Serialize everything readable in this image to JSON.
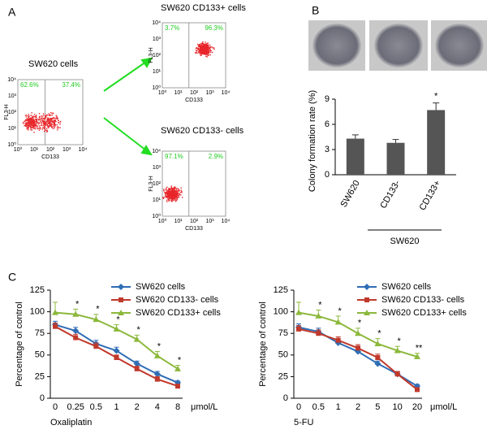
{
  "panel_a": {
    "label": "A",
    "flow_xlabel": "CD133",
    "flow_ylabel": "FL3-H",
    "flow_ticks": [
      "10⁰",
      "10¹",
      "10²",
      "10³",
      "10⁴"
    ],
    "plots": [
      {
        "title": "SW620 cells",
        "left": "62.6%",
        "right": "37.4%"
      },
      {
        "title": "SW620 CD133+ cells",
        "left": "3.7%",
        "right": "96.3%"
      },
      {
        "title": "SW620 CD133- cells",
        "left": "97.1%",
        "right": "2.9%"
      }
    ]
  },
  "panel_b": {
    "label": "B",
    "group_label": "SW620"
  },
  "panel_c": {
    "label": "C"
  },
  "chart_data": [
    {
      "type": "bar",
      "ylabel": "Colony formation rate (%)",
      "categories": [
        "SW620",
        "CD133-",
        "CD133+"
      ],
      "values": [
        4.3,
        3.8,
        7.7
      ],
      "errors": [
        0.45,
        0.4,
        0.85
      ],
      "annotations": [
        null,
        null,
        "*"
      ],
      "color": "#555555",
      "ylim": [
        0,
        9
      ],
      "yticks": [
        0,
        3,
        6,
        9
      ]
    },
    {
      "type": "line",
      "xlabel": "Oxaliplatin",
      "unit": "μmol/L",
      "ylabel": "Percentage of control",
      "categories": [
        "0",
        "0.25",
        "0.5",
        "1",
        "2",
        "4",
        "8"
      ],
      "series": [
        {
          "name": "SW620 cells",
          "color": "#2f6db5",
          "marker": "diamond",
          "values": [
            85,
            78,
            63,
            55,
            40,
            28,
            18
          ],
          "errors": [
            4,
            4,
            4,
            4,
            3,
            3,
            2
          ]
        },
        {
          "name": "SW620 CD133- cells",
          "color": "#c0392b",
          "marker": "square",
          "values": [
            83,
            70,
            60,
            47,
            34,
            22,
            14
          ],
          "errors": [
            4,
            4,
            4,
            3,
            3,
            3,
            2
          ]
        },
        {
          "name": "SW620 CD133+ cells",
          "color": "#8cb83c",
          "marker": "triangle",
          "values": [
            99,
            97,
            91,
            80,
            68,
            49,
            34
          ],
          "errors": [
            12,
            6,
            6,
            5,
            5,
            5,
            4
          ]
        }
      ],
      "annotations": [
        null,
        "*",
        "*",
        "*",
        "*",
        "*",
        "*"
      ],
      "ylim": [
        0,
        125
      ],
      "yticks": [
        0,
        25,
        50,
        75,
        100,
        125
      ]
    },
    {
      "type": "line",
      "xlabel": "5-FU",
      "unit": "μmol/L",
      "ylabel": "Percentage of control",
      "categories": [
        "0",
        "0.5",
        "1",
        "2",
        "5",
        "10",
        "20"
      ],
      "series": [
        {
          "name": "SW620 cells",
          "color": "#2f6db5",
          "marker": "diamond",
          "values": [
            82,
            77,
            64,
            54,
            40,
            28,
            14
          ],
          "errors": [
            4,
            4,
            4,
            4,
            3,
            3,
            2
          ]
        },
        {
          "name": "SW620 CD133- cells",
          "color": "#c0392b",
          "marker": "square",
          "values": [
            80,
            75,
            67,
            58,
            47,
            28,
            10
          ],
          "errors": [
            4,
            4,
            4,
            4,
            4,
            3,
            2
          ]
        },
        {
          "name": "SW620 CD133+ cells",
          "color": "#8cb83c",
          "marker": "triangle",
          "values": [
            99,
            95,
            88,
            75,
            63,
            55,
            48
          ],
          "errors": [
            12,
            7,
            7,
            6,
            6,
            5,
            4
          ]
        }
      ],
      "annotations": [
        null,
        "*",
        "*",
        "*",
        "*",
        "*",
        "**"
      ],
      "ylim": [
        0,
        125
      ],
      "yticks": [
        0,
        25,
        50,
        75,
        100,
        125
      ]
    }
  ]
}
